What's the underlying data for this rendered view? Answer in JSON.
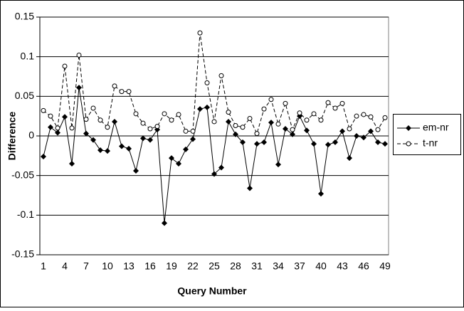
{
  "chart_data": {
    "type": "line",
    "x_label": "Query Number",
    "y_label": "Difference",
    "categories": [
      "1",
      null,
      null,
      "4",
      null,
      null,
      "7",
      null,
      null,
      "10",
      null,
      null,
      "13",
      null,
      null,
      "16",
      null,
      null,
      "19",
      null,
      null,
      "22",
      null,
      null,
      "25",
      null,
      null,
      "28",
      null,
      null,
      "31",
      null,
      null,
      "34",
      null,
      null,
      "37",
      null,
      null,
      "40",
      null,
      null,
      "43",
      null,
      null,
      "46",
      null,
      null,
      "49"
    ],
    "series": [
      {
        "name": "em-nr",
        "color": "#000000",
        "marker": "diamond",
        "dashed": false,
        "values": [
          -0.026,
          0.011,
          0.004,
          0.024,
          -0.035,
          0.061,
          0.003,
          -0.005,
          -0.018,
          -0.019,
          0.018,
          -0.013,
          -0.016,
          -0.044,
          -0.003,
          -0.005,
          0.008,
          -0.11,
          -0.028,
          -0.035,
          -0.017,
          -0.004,
          0.034,
          0.036,
          -0.048,
          -0.04,
          0.018,
          0.002,
          -0.008,
          -0.066,
          -0.01,
          -0.008,
          0.017,
          -0.036,
          0.009,
          0.002,
          0.025,
          0.007,
          -0.01,
          -0.073,
          -0.011,
          -0.008,
          0.006,
          -0.028,
          0.0,
          -0.002,
          0.006,
          -0.008,
          -0.01
        ]
      },
      {
        "name": "t-nr",
        "color": "#000000",
        "marker": "circle",
        "dashed": true,
        "values": [
          0.032,
          0.025,
          0.01,
          0.088,
          0.01,
          0.102,
          0.021,
          0.035,
          0.02,
          0.011,
          0.063,
          0.056,
          0.056,
          0.028,
          0.016,
          0.009,
          0.012,
          0.028,
          0.02,
          0.027,
          0.006,
          0.006,
          0.13,
          0.067,
          0.018,
          0.076,
          0.03,
          0.013,
          0.011,
          0.022,
          0.003,
          0.034,
          0.046,
          0.015,
          0.041,
          0.008,
          0.029,
          0.02,
          0.028,
          0.02,
          0.042,
          0.035,
          0.041,
          0.009,
          0.025,
          0.027,
          0.024,
          0.008,
          0.023
        ]
      }
    ],
    "ylim": [
      -0.15,
      0.15
    ],
    "yticks": [
      -0.15,
      -0.1,
      -0.05,
      0,
      0.05,
      0.1,
      0.15
    ],
    "grid": true,
    "legend": "right"
  }
}
